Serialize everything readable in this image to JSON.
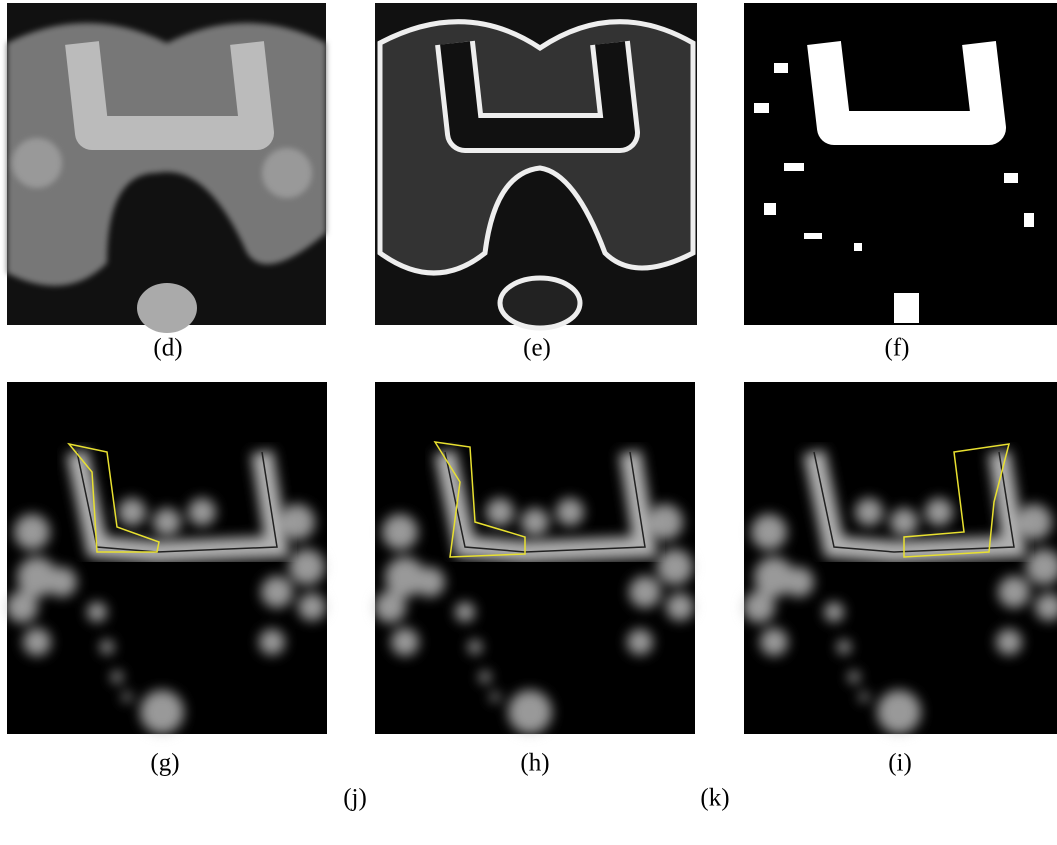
{
  "panels": [
    "(d)",
    "(e)",
    "(f)",
    "(g)",
    "(h)",
    "(i)"
  ],
  "footer_labels": [
    "(j)",
    "(k)"
  ]
}
